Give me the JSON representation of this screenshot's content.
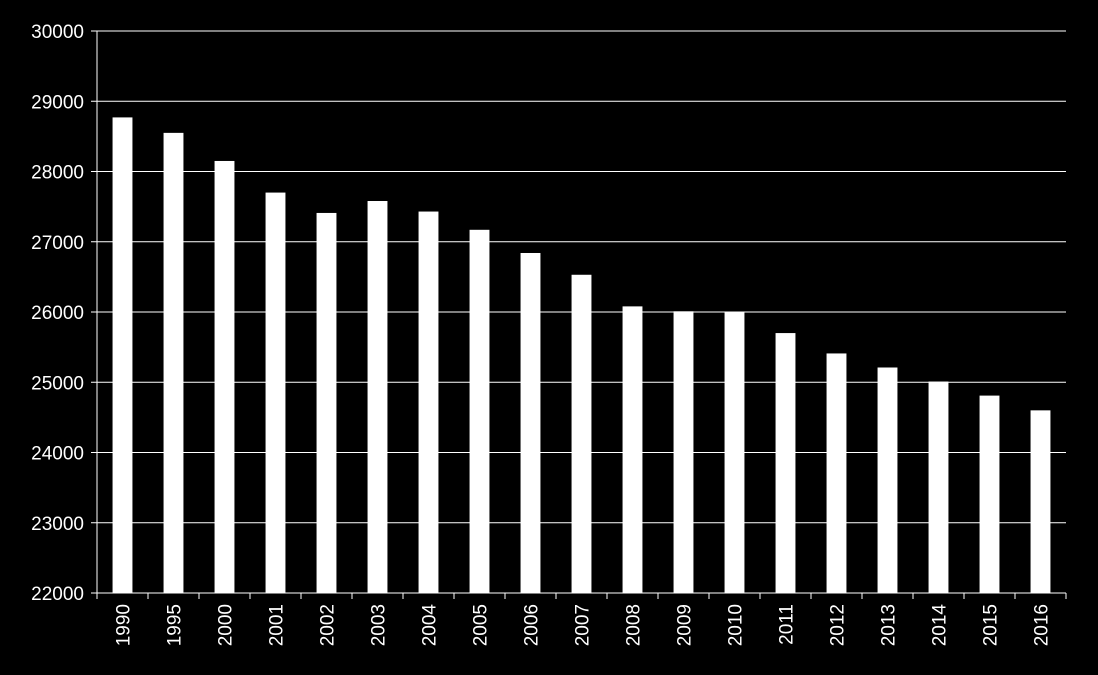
{
  "chart_data": {
    "type": "bar",
    "title": "",
    "xlabel": "",
    "ylabel": "",
    "categories": [
      "1990",
      "1995",
      "2000",
      "2001",
      "2002",
      "2003",
      "2004",
      "2005",
      "2006",
      "2007",
      "2008",
      "2009",
      "2010",
      "2011",
      "2012",
      "2013",
      "2014",
      "2015",
      "2016"
    ],
    "values": [
      28770,
      28550,
      28150,
      27700,
      27410,
      27580,
      27430,
      27170,
      26840,
      26530,
      26080,
      26010,
      26000,
      25700,
      25410,
      25210,
      25010,
      24810,
      24600
    ],
    "ylim": [
      22000,
      30000
    ],
    "yticks": [
      "22000",
      "23000",
      "24000",
      "25000",
      "26000",
      "27000",
      "28000",
      "29000",
      "30000"
    ],
    "grid": true,
    "legend": "none",
    "colors": {
      "background": "#000000",
      "bar": "#ffffff",
      "grid": "#ffffff",
      "axis": "#ffffff",
      "text": "#ffffff"
    }
  }
}
